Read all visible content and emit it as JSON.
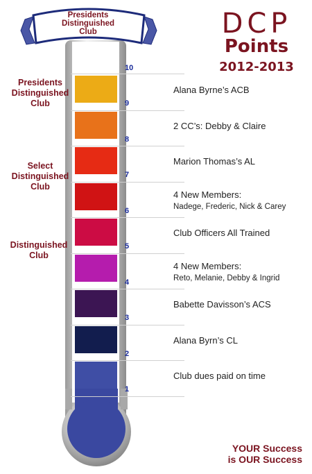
{
  "banner": {
    "line1": "Presidents",
    "line2": "Distinguished",
    "line3": "Club"
  },
  "title": {
    "main": "DCP",
    "sub": "Points",
    "year": "2012-2013"
  },
  "levels": [
    {
      "lines": [
        "Presidents",
        "Distinguished",
        "Club"
      ]
    },
    {
      "lines": [
        "Select",
        "Distinguished",
        "Club"
      ]
    },
    {
      "lines": [
        "Distinguished",
        "Club"
      ]
    }
  ],
  "top_number": "10",
  "rows": [
    {
      "num": "9",
      "label": "Alana Byrne’s  ACB",
      "label2": "",
      "color": "#ecab16"
    },
    {
      "num": "8",
      "label": "2 CC’s:  Debby & Claire",
      "label2": "",
      "color": "#e8721a"
    },
    {
      "num": "7",
      "label": "Marion Thomas’s AL",
      "label2": "",
      "color": "#e62b14"
    },
    {
      "num": "6",
      "label": "4 New Members:",
      "label2": "Nadege, Frederic, Nick & Carey",
      "color": "#d01314"
    },
    {
      "num": "5",
      "label": "Club Officers All Trained",
      "label2": "",
      "color": "#cc0c44"
    },
    {
      "num": "4",
      "label": "4 New Members:",
      "label2": "Reto, Melanie, Debby & Ingrid",
      "color": "#b51cad"
    },
    {
      "num": "3",
      "label": "Babette Davisson’s ACS",
      "label2": "",
      "color": "#3c1553"
    },
    {
      "num": "2",
      "label": "Alana Byrn’s CL",
      "label2": "",
      "color": "#121d4e"
    },
    {
      "num": "1",
      "label": "Club dues paid on time",
      "label2": "",
      "color": "#3f4ea5"
    }
  ],
  "tagline": {
    "line1": "YOUR Success",
    "line2": "is OUR Success"
  },
  "colors": {
    "brand": "#7b1420",
    "number": "#1a2c9a",
    "bulb": "#3a48a0",
    "tube": "#c9c9c9"
  }
}
